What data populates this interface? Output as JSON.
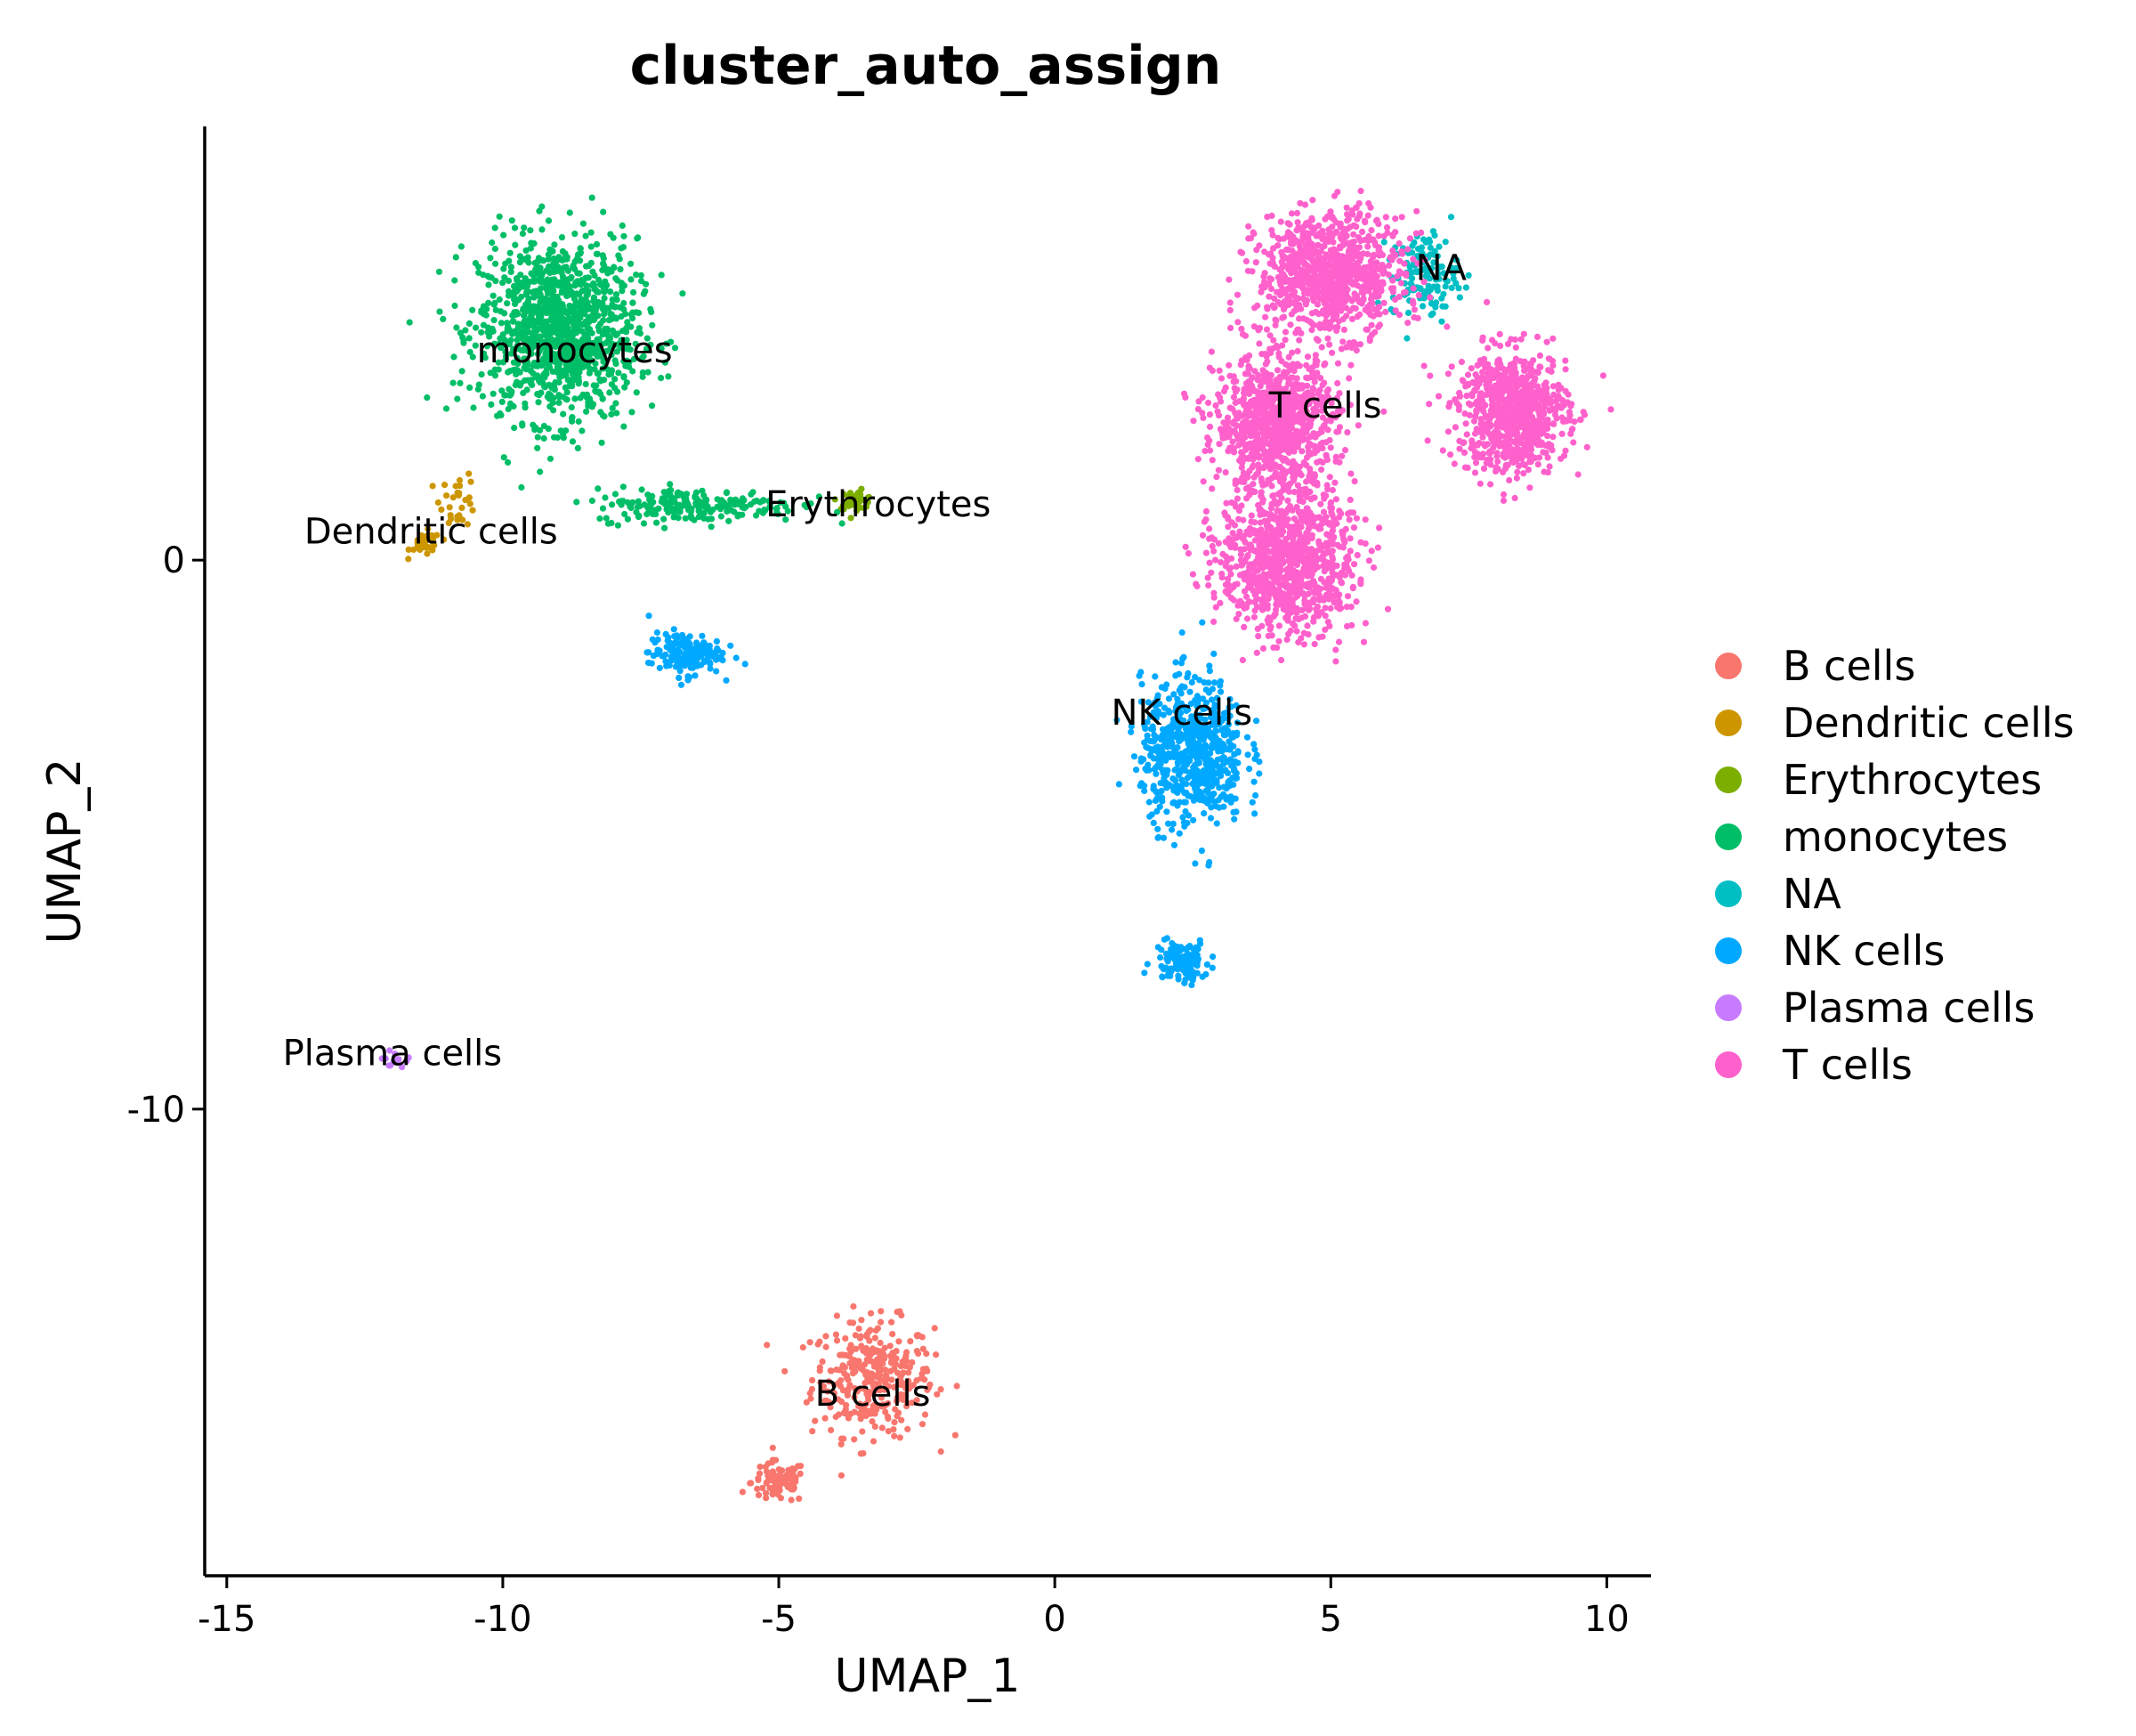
{
  "chart_data": {
    "type": "scatter",
    "title": "cluster_auto_assign",
    "xlabel": "UMAP_1",
    "ylabel": "UMAP_2",
    "xlim": [
      -15.4,
      10.8
    ],
    "ylim": [
      -18.5,
      7.9
    ],
    "x_ticks": [
      -15,
      -10,
      -5,
      0,
      5,
      10
    ],
    "x_tick_labels": [
      "-15",
      "-10",
      "-5",
      "0",
      "5",
      "10"
    ],
    "y_ticks": [
      0,
      -10
    ],
    "y_tick_labels": [
      "0",
      "-10"
    ],
    "grid": false,
    "legend_position": "right",
    "series": [
      {
        "name": "B cells",
        "color": "#F8766D",
        "label": "B cells",
        "label_at": [
          -3.3,
          -15.4
        ],
        "clusters": [
          {
            "x": [
              -3.3,
              -14.9
            ],
            "spread": [
              1.0,
              0.95
            ],
            "n": 330
          },
          {
            "x": [
              -5.0,
              -16.8
            ],
            "spread": [
              0.45,
              0.35
            ],
            "n": 90
          }
        ]
      },
      {
        "name": "Dendritic cells",
        "color": "#CD9600",
        "label": "Dendritic cells",
        "label_at": [
          -11.3,
          0.3
        ],
        "clusters": [
          {
            "x": [
              -11.4,
              0.3
            ],
            "spread": [
              0.25,
              0.2
            ],
            "n": 40
          },
          {
            "x": [
              -10.8,
              1.1
            ],
            "spread": [
              0.3,
              0.45
            ],
            "n": 30
          }
        ]
      },
      {
        "name": "Erythrocytes",
        "color": "#7CAE00",
        "label": "Erythrocytes",
        "label_at": [
          -3.2,
          0.8
        ],
        "clusters": [
          {
            "x": [
              -3.6,
              1.1
            ],
            "spread": [
              0.3,
              0.15
            ],
            "n": 40
          }
        ]
      },
      {
        "name": "monocytes",
        "color": "#00BE67",
        "label": "monocytes",
        "label_at": [
          -8.7,
          3.6
        ],
        "clusters": [
          {
            "x": [
              -9.0,
              4.2
            ],
            "spread": [
              1.3,
              1.5
            ],
            "n": 1200
          },
          {
            "x": [
              -6.5,
              1.0
            ],
            "spread": [
              1.7,
              0.28
            ],
            "n": 220
          }
        ]
      },
      {
        "name": "NA",
        "color": "#00BFC4",
        "label": "NA",
        "label_at": [
          7.0,
          5.1
        ],
        "clusters": [
          {
            "x": [
              6.7,
              5.2
            ],
            "spread": [
              0.55,
              0.7
            ],
            "n": 130
          }
        ]
      },
      {
        "name": "NK cells",
        "color": "#00A9FF",
        "label": "NK cells",
        "label_at": [
          2.3,
          -3.0
        ],
        "clusters": [
          {
            "x": [
              -6.7,
              -1.7
            ],
            "spread": [
              0.6,
              0.35
            ],
            "n": 160
          },
          {
            "x": [
              2.5,
              -3.5
            ],
            "spread": [
              0.85,
              1.2
            ],
            "n": 650
          },
          {
            "x": [
              2.3,
              -7.3
            ],
            "spread": [
              0.45,
              0.35
            ],
            "n": 130
          }
        ]
      },
      {
        "name": "Plasma cells",
        "color": "#C77CFF",
        "label": "Plasma cells",
        "label_at": [
          -12.0,
          -9.2
        ],
        "clusters": [
          {
            "x": [
              -12.0,
              -9.1
            ],
            "spread": [
              0.18,
              0.12
            ],
            "n": 14
          }
        ]
      },
      {
        "name": "T cells",
        "color": "#FF61CC",
        "label": "T cells",
        "label_at": [
          4.9,
          2.6
        ],
        "clusters": [
          {
            "x": [
              5.0,
              5.2
            ],
            "spread": [
              1.2,
              1.0
            ],
            "n": 900
          },
          {
            "x": [
              4.0,
              2.5
            ],
            "spread": [
              1.0,
              1.1
            ],
            "n": 900
          },
          {
            "x": [
              8.3,
              2.7
            ],
            "spread": [
              0.9,
              1.0
            ],
            "n": 800
          },
          {
            "x": [
              4.2,
              0.0
            ],
            "spread": [
              1.1,
              1.2
            ],
            "n": 1000
          }
        ]
      }
    ]
  }
}
